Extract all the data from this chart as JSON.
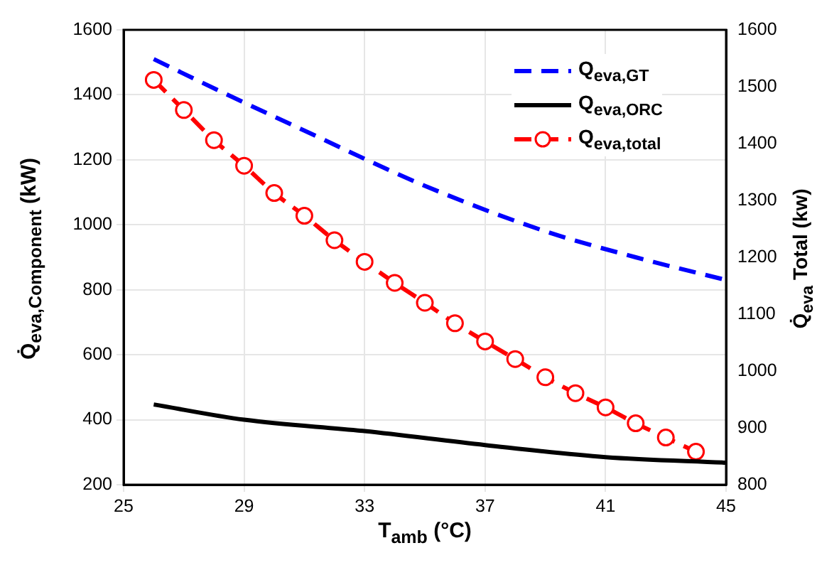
{
  "chart_data": {
    "type": "line",
    "xlabel": "T$_{amb}$ (°C)",
    "ylabel": "Q̇$_{eva,Component}$ (kW)",
    "y2label": "Q̇$_{eva}$ Total (kw)",
    "xlim": [
      25,
      45
    ],
    "xticks": [
      25,
      29,
      33,
      37,
      41,
      45
    ],
    "ylim": [
      200,
      1600
    ],
    "yticks": [
      200,
      400,
      600,
      800,
      1000,
      1200,
      1400,
      1600
    ],
    "y2lim": [
      800,
      1600
    ],
    "y2ticks": [
      800,
      900,
      1000,
      1100,
      1200,
      1300,
      1400,
      1500,
      1600
    ],
    "grid": true,
    "legend": "top right",
    "series": [
      {
        "name": "Q$_{eva,GT}$",
        "color": "#0000ff",
        "line_style": "dashed",
        "marker": "none",
        "x": [
          26,
          28,
          31,
          35,
          39,
          42,
          45
        ],
        "values": [
          1510,
          1420,
          1290,
          1120,
          980,
          900,
          830
        ]
      },
      {
        "name": "Q$_{eva,ORC}$",
        "color": "#000000",
        "line_style": "solid",
        "marker": "none",
        "x": [
          26,
          29,
          33,
          37,
          41,
          45
        ],
        "values": [
          447,
          400,
          365,
          322,
          285,
          268
        ]
      },
      {
        "name": "Q$_{eva,total}$",
        "color": "#ff0000",
        "line_style": "dashed",
        "marker": "circle",
        "axis": "y2",
        "x": [
          26,
          27,
          28,
          29,
          30,
          31,
          32,
          33,
          34,
          35,
          36,
          37,
          38,
          39,
          40,
          41,
          42,
          43,
          44
        ],
        "values": [
          1512,
          1459,
          1406,
          1361,
          1313,
          1273,
          1230,
          1192,
          1155,
          1120,
          1084,
          1052,
          1021,
          989,
          961,
          936,
          908,
          883,
          858
        ]
      }
    ]
  }
}
